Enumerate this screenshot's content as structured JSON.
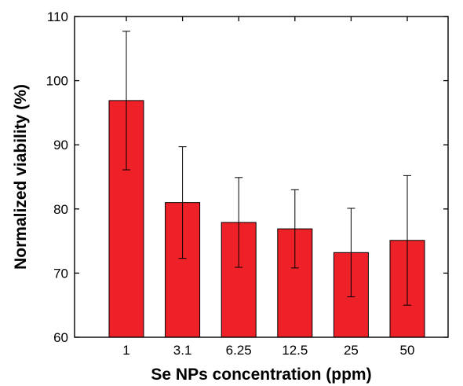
{
  "chart_data": {
    "type": "bar",
    "categories": [
      "1",
      "3.1",
      "6.25",
      "12.5",
      "25",
      "50"
    ],
    "values": [
      96.9,
      81.0,
      77.9,
      76.9,
      73.2,
      75.1
    ],
    "errors": [
      10.8,
      8.7,
      7.0,
      6.1,
      6.9,
      10.1
    ],
    "xlabel": "Se NPs concentration (ppm)",
    "ylabel": "Normalized viability (%)",
    "ylim": [
      60,
      110
    ],
    "yticks": [
      60,
      70,
      80,
      90,
      100,
      110
    ],
    "grid": false,
    "bar_color": "#ee2128"
  }
}
